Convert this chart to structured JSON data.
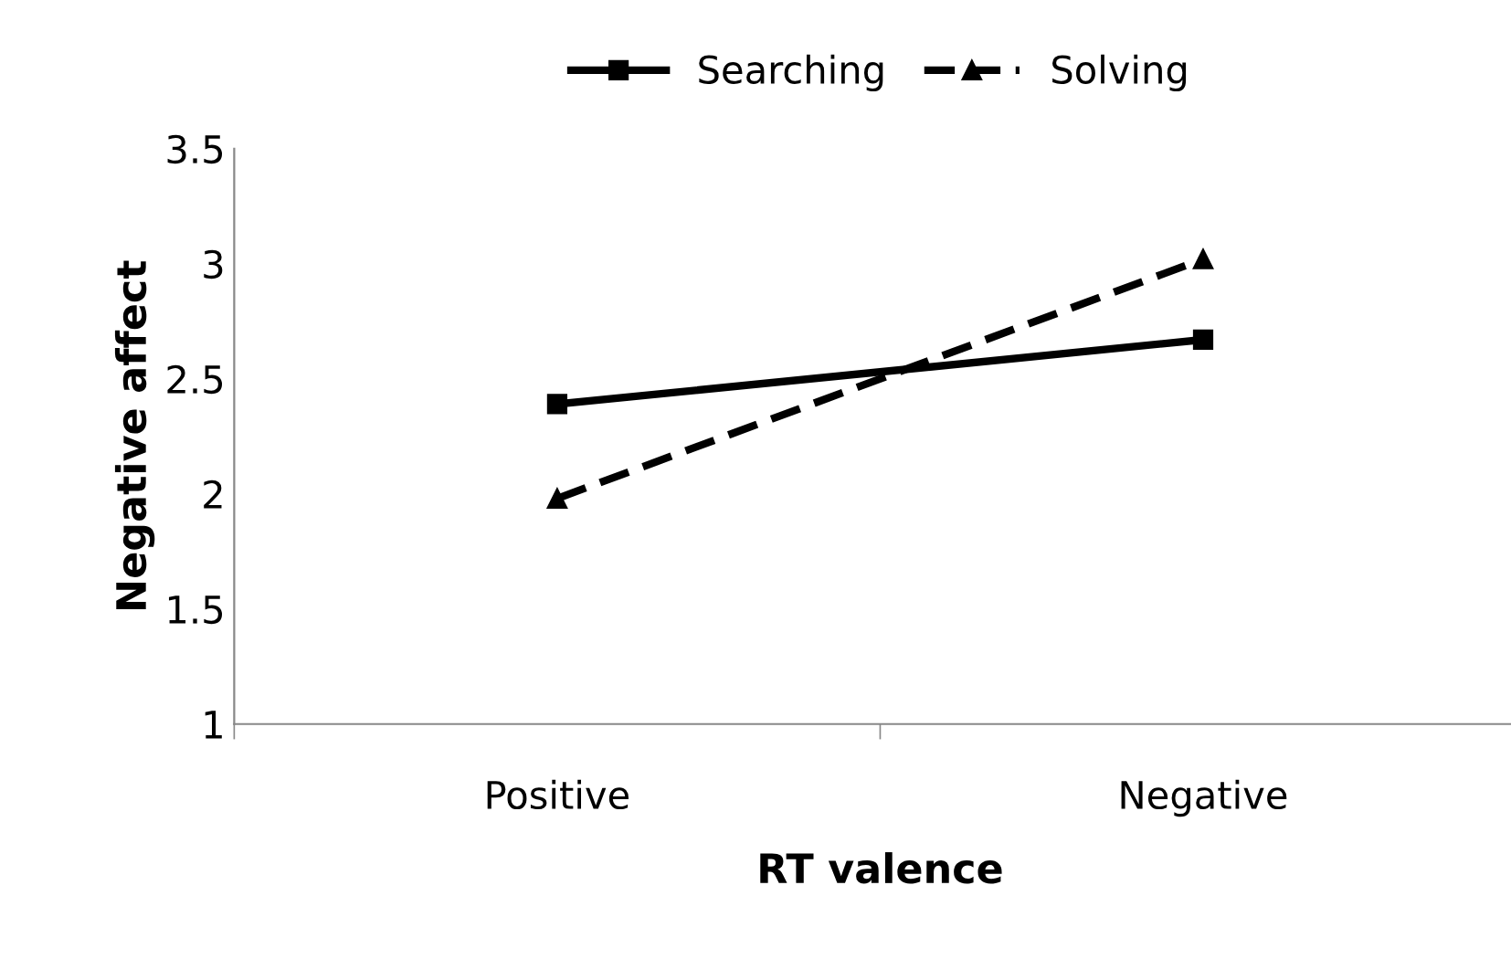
{
  "chart_data": {
    "type": "line",
    "xlabel": "RT valence",
    "ylabel": "Negative affect",
    "categories": [
      "Positive",
      "Negative"
    ],
    "series": [
      {
        "name": "Searching",
        "color": "#000000",
        "values": [
          2.39,
          2.67
        ],
        "marker": "square",
        "line_style": "solid"
      },
      {
        "name": "Solving",
        "color": "#000000",
        "values": [
          1.98,
          3.02
        ],
        "marker": "triangle",
        "line_style": "dashed"
      }
    ],
    "ylim": [
      1,
      3.5
    ],
    "yticks": [
      1,
      1.5,
      2,
      2.5,
      3,
      3.5
    ],
    "grid": false,
    "legend": "top"
  }
}
